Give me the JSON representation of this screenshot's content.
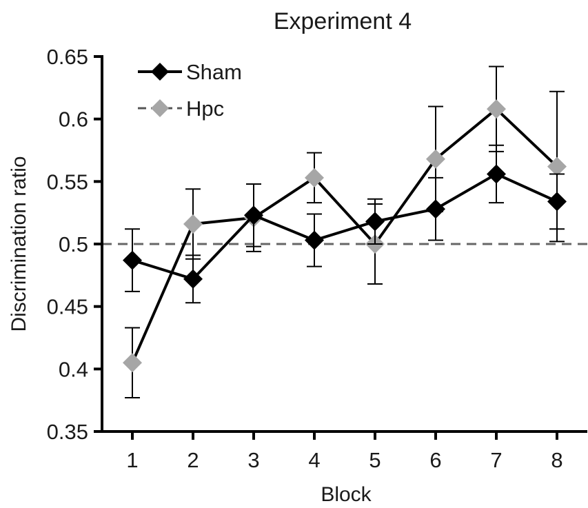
{
  "chart_data": {
    "type": "line",
    "title": "Experiment 4",
    "xlabel": "Block",
    "ylabel": "Discrimination ratio",
    "x": [
      1,
      2,
      3,
      4,
      5,
      6,
      7,
      8
    ],
    "x_tick_labels": [
      "1",
      "2",
      "3",
      "4",
      "5",
      "6",
      "7",
      "8"
    ],
    "xlim": [
      0.5,
      8.5
    ],
    "ylim": [
      0.35,
      0.65
    ],
    "y_ticks": [
      0.35,
      0.4,
      0.45,
      0.5,
      0.55,
      0.6,
      0.65
    ],
    "y_tick_labels": [
      "0.35",
      "0.4",
      "0.45",
      "0.5",
      "0.55",
      "0.6",
      "0.65"
    ],
    "reference_line": {
      "y": 0.5,
      "style": "dashed",
      "color": "#666666"
    },
    "grid": false,
    "legend": {
      "placement": "top-left"
    },
    "series": [
      {
        "name": "Sham",
        "color": "#000000",
        "marker": "diamond",
        "values": [
          0.487,
          0.472,
          0.523,
          0.503,
          0.518,
          0.528,
          0.556,
          0.534
        ],
        "error": [
          0.025,
          0.019,
          0.025,
          0.021,
          0.018,
          0.025,
          0.023,
          0.022
        ]
      },
      {
        "name": "Hpc",
        "color": "#a6a6a6",
        "marker": "diamond",
        "values": [
          0.405,
          0.516,
          0.521,
          0.553,
          0.5,
          0.568,
          0.608,
          0.562
        ],
        "error": [
          0.028,
          0.028,
          0.027,
          0.02,
          0.032,
          0.042,
          0.034,
          0.06
        ]
      }
    ]
  }
}
